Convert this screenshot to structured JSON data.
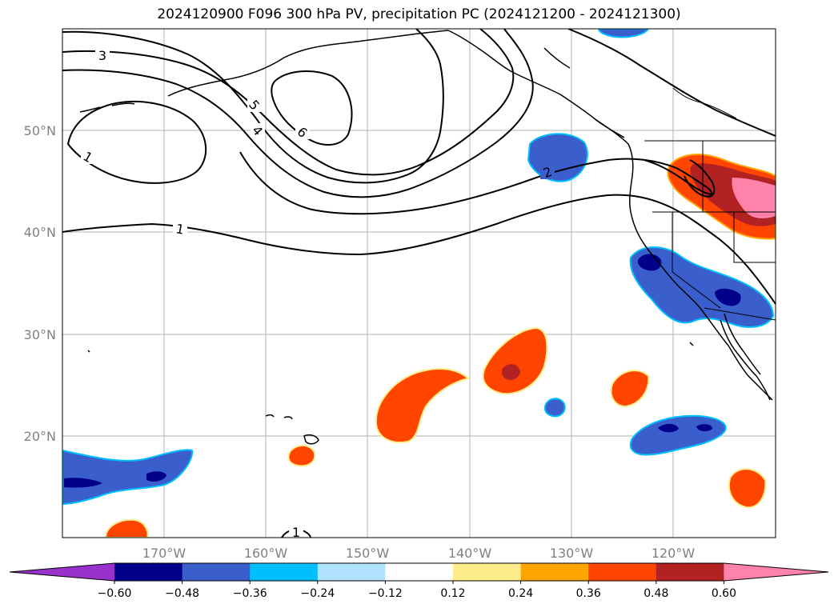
{
  "title": "2024120900 F096 300 hPa PV, precipitation PC (2024121200 - 2024121300)",
  "map": {
    "lon_ticks": [
      "170°W",
      "160°W",
      "150°W",
      "140°W",
      "130°W",
      "120°W"
    ],
    "lat_ticks": [
      "50°N",
      "40°N",
      "30°N",
      "20°N"
    ],
    "contour_labels": [
      "3",
      "5",
      "4",
      "6",
      "1",
      "2",
      "1",
      "1"
    ]
  },
  "colorbar": {
    "ticks": [
      "−0.60",
      "−0.48",
      "−0.36",
      "−0.24",
      "−0.12",
      "0.12",
      "0.24",
      "0.36",
      "0.48",
      "0.60"
    ],
    "colors": [
      "#9932cc",
      "#00008b",
      "#3a5fcd",
      "#00bfff",
      "#b0e2ff",
      "#ffffff",
      "#ffec8b",
      "#ffa500",
      "#ff4500",
      "#b22222",
      "#ff82ab"
    ]
  }
}
